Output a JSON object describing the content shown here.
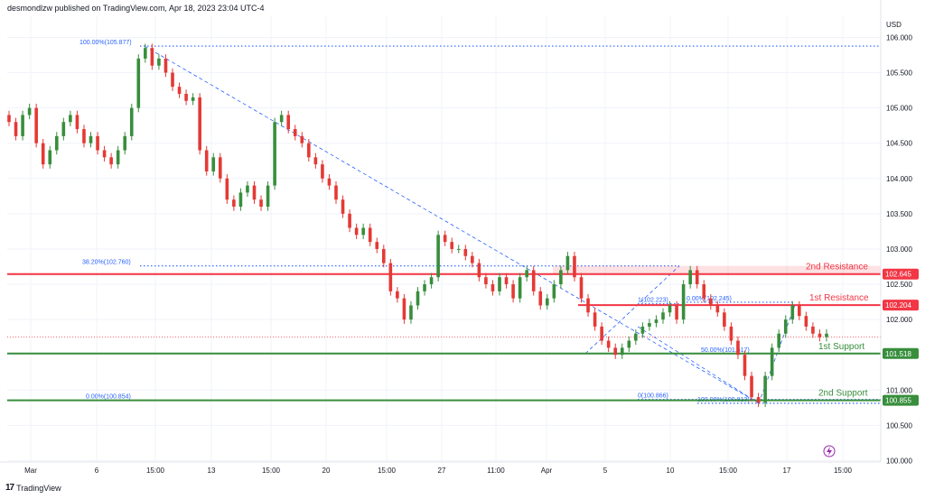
{
  "header": {
    "text": "desmondlzw published on TradingView.com, Apr 18, 2023 23:04 UTC-4"
  },
  "footer": {
    "logo_mark": "17",
    "logo_text": "TradingView"
  },
  "chart_data": {
    "type": "candlestick",
    "currency_label": "USD",
    "y_ticks": [
      "106.000",
      "105.500",
      "105.000",
      "104.500",
      "104.000",
      "103.500",
      "103.000",
      "102.500",
      "102.000",
      "101.500",
      "101.000",
      "100.500",
      "100.000"
    ],
    "x_ticks": [
      "Mar",
      "6",
      "15:00",
      "13",
      "15:00",
      "20",
      "15:00",
      "27",
      "11:00",
      "Apr",
      "5",
      "10",
      "15:00",
      "17",
      "15:00"
    ],
    "ylim": [
      99.98,
      106.3
    ],
    "levels": [
      {
        "name": "2nd Resistance",
        "value": 102.645,
        "label": "102.645",
        "color": "#f23645"
      },
      {
        "name": "1st Resistance",
        "value": 102.204,
        "label": "102.204",
        "color": "#f23645"
      },
      {
        "name": "1st Support",
        "value": 101.518,
        "label": "101.518",
        "color": "#388e3c"
      },
      {
        "name": "2nd Support",
        "value": 100.855,
        "label": "100.855",
        "color": "#388e3c"
      }
    ],
    "fib_labels": [
      {
        "text": "100.00%(105.877)",
        "value": 105.877
      },
      {
        "text": "38.20%(102.760)",
        "value": 102.76
      },
      {
        "text": "0.00%(100.854)",
        "value": 100.854
      },
      {
        "text": "0(100.866)",
        "value": 100.866
      },
      {
        "text": "100.00%(100.813)",
        "value": 100.813
      },
      {
        "text": "50.00%(101.517)",
        "value": 101.517
      },
      {
        "text": "1(102.223)",
        "value": 102.223
      },
      {
        "text": "0.00%(102.245)",
        "value": 102.245
      }
    ],
    "colors": {
      "up": "#388e3c",
      "down": "#e53935",
      "fib": "#2962ff",
      "grid": "#f0f3fa"
    },
    "closes": [
      104.8,
      104.6,
      104.9,
      105.0,
      104.5,
      104.2,
      104.4,
      104.6,
      104.8,
      104.9,
      104.7,
      104.5,
      104.6,
      104.4,
      104.3,
      104.2,
      104.4,
      104.6,
      105.0,
      105.7,
      105.85,
      105.6,
      105.7,
      105.5,
      105.3,
      105.2,
      105.1,
      105.15,
      104.4,
      104.1,
      104.3,
      104.0,
      103.7,
      103.6,
      103.8,
      103.9,
      103.7,
      103.6,
      103.9,
      104.8,
      104.9,
      104.7,
      104.6,
      104.5,
      104.3,
      104.2,
      104.0,
      103.9,
      103.7,
      103.5,
      103.3,
      103.2,
      103.3,
      103.1,
      103.0,
      102.8,
      102.4,
      102.3,
      102.0,
      102.2,
      102.4,
      102.5,
      102.6,
      103.2,
      103.1,
      103.0,
      103.0,
      102.9,
      102.8,
      102.6,
      102.5,
      102.4,
      102.6,
      102.5,
      102.3,
      102.6,
      102.7,
      102.4,
      102.2,
      102.3,
      102.5,
      102.7,
      102.9,
      102.6,
      102.3,
      102.1,
      101.9,
      101.7,
      101.6,
      101.5,
      101.6,
      101.7,
      101.8,
      101.9,
      101.95,
      102.0,
      102.1,
      102.2,
      102.0,
      102.5,
      102.7,
      102.5,
      102.3,
      102.2,
      102.1,
      101.9,
      101.7,
      101.5,
      101.2,
      100.9,
      100.82,
      101.2,
      101.6,
      101.8,
      102.0,
      102.2,
      102.05,
      101.9,
      101.8,
      101.75,
      101.8
    ],
    "last_price": 101.75
  }
}
